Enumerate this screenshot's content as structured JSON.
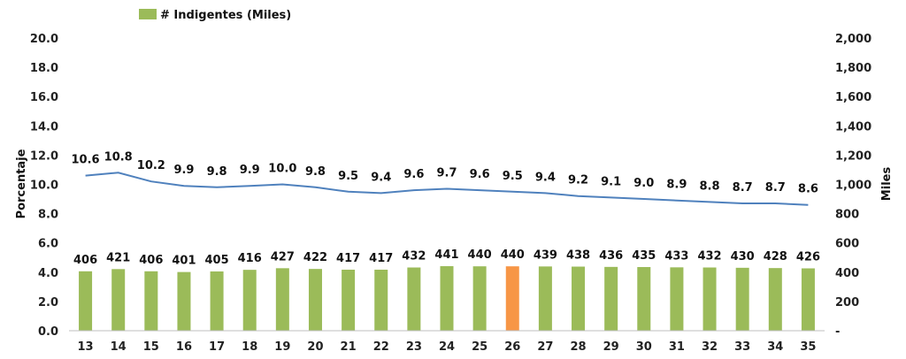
{
  "chart_data": {
    "type": "bar",
    "legend": {
      "label": "# Indigentes (Miles)",
      "placement": "top-left"
    },
    "categories": [
      "13",
      "14",
      "15",
      "16",
      "17",
      "18",
      "19",
      "20",
      "21",
      "22",
      "23",
      "24",
      "25",
      "26",
      "27",
      "28",
      "29",
      "30",
      "31",
      "32",
      "33",
      "34",
      "35"
    ],
    "series": [
      {
        "name": "# Indigentes (Miles)",
        "type": "bar",
        "axis": "right",
        "color": "#9BBB59",
        "highlight_color": "#F79646",
        "highlight_category": "26",
        "values": [
          406,
          421,
          406,
          401,
          405,
          416,
          427,
          422,
          417,
          417,
          432,
          441,
          440,
          440,
          439,
          438,
          436,
          435,
          433,
          432,
          430,
          428,
          426
        ],
        "labels": [
          "406",
          "421",
          "406",
          "401",
          "405",
          "416",
          "427",
          "422",
          "417",
          "417",
          "432",
          "441",
          "440",
          "440",
          "439",
          "438",
          "436",
          "435",
          "433",
          "432",
          "430",
          "428",
          "426"
        ]
      },
      {
        "type": "line",
        "axis": "left",
        "color": "#4F81BD",
        "values": [
          10.6,
          10.8,
          10.2,
          9.9,
          9.8,
          9.9,
          10.0,
          9.8,
          9.5,
          9.4,
          9.6,
          9.7,
          9.6,
          9.5,
          9.4,
          9.2,
          9.1,
          9.0,
          8.9,
          8.8,
          8.7,
          8.7,
          8.6
        ],
        "labels": [
          "10.6",
          "10.8",
          "10.2",
          "9.9",
          "9.8",
          "9.9",
          "10.0",
          "9.8",
          "9.5",
          "9.4",
          "9.6",
          "9.7",
          "9.6",
          "9.5",
          "9.4",
          "9.2",
          "9.1",
          "9.0",
          "8.9",
          "8.8",
          "8.7",
          "8.7",
          "8.6"
        ]
      }
    ],
    "y_left": {
      "label": "Porcentaje",
      "ylim": [
        0,
        20
      ],
      "ticks": [
        "0.0",
        "2.0",
        "4.0",
        "6.0",
        "8.0",
        "10.0",
        "12.0",
        "14.0",
        "16.0",
        "18.0",
        "20.0"
      ]
    },
    "y_right": {
      "label": "Miles",
      "ylim": [
        0,
        2000
      ],
      "ticks": [
        "-",
        "200",
        "400",
        "600",
        "800",
        "1,000",
        "1,200",
        "1,400",
        "1,600",
        "1,800",
        "2,000"
      ]
    },
    "grid": false
  }
}
